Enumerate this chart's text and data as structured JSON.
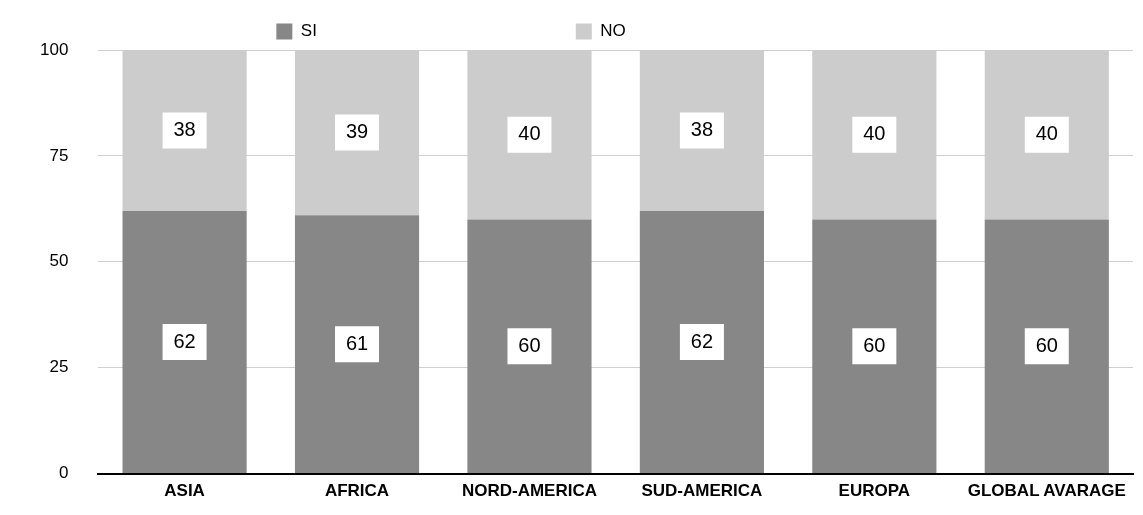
{
  "chart_data": {
    "type": "bar",
    "stacked": true,
    "categories": [
      "ASIA",
      "AFRICA",
      "NORD-AMERICA",
      "SUD-AMERICA",
      "EUROPA",
      "GLOBAL AVARAGE"
    ],
    "series": [
      {
        "name": "SI",
        "color": "#878787",
        "values": [
          62,
          61,
          60,
          62,
          60,
          60
        ]
      },
      {
        "name": "NO",
        "color": "#cccccc",
        "values": [
          38,
          39,
          40,
          38,
          40,
          40
        ]
      }
    ],
    "ylim": [
      0,
      100
    ],
    "yticks": [
      0,
      25,
      50,
      75,
      100
    ],
    "grid": "y",
    "legend": "top",
    "data_labels": true
  }
}
